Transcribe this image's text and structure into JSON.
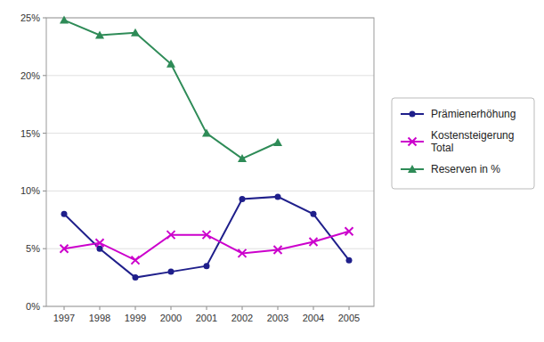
{
  "chart_data": {
    "type": "line",
    "x": [
      1997,
      1998,
      1999,
      2000,
      2001,
      2002,
      2003,
      2004,
      2005
    ],
    "xlim": [
      1996.5,
      2005.7
    ],
    "xticks": [
      1997,
      1998,
      1999,
      2000,
      2001,
      2002,
      2003,
      2004,
      2005
    ],
    "ylim": [
      0,
      0.25
    ],
    "yticks": [
      {
        "value": 0,
        "label": "0%"
      },
      {
        "value": 0.05,
        "label": "5%"
      },
      {
        "value": 0.1,
        "label": "10%"
      },
      {
        "value": 0.15,
        "label": "15%"
      },
      {
        "value": 0.2,
        "label": "20%"
      },
      {
        "value": 0.25,
        "label": "25%"
      }
    ],
    "grid": true,
    "legend": "right",
    "series": [
      {
        "name": "Prämienerhöhung",
        "color": "#1F1F8B",
        "marker": "circle",
        "line_style": "solid",
        "values": [
          0.08,
          0.05,
          0.025,
          0.03,
          0.035,
          0.093,
          0.095,
          0.08,
          0.04
        ]
      },
      {
        "name": "Kostensteigerung\nTotal",
        "color": "#CC00CC",
        "marker": "x",
        "line_style": "solid",
        "values": [
          0.05,
          0.055,
          0.04,
          0.062,
          0.062,
          0.046,
          0.049,
          0.056,
          0.065
        ]
      },
      {
        "name": "Reserven in %",
        "color": "#2E8B57",
        "marker": "triangle",
        "line_style": "solid",
        "values": [
          0.248,
          0.235,
          0.237,
          0.21,
          0.15,
          0.128,
          0.142,
          null,
          null
        ]
      }
    ]
  }
}
